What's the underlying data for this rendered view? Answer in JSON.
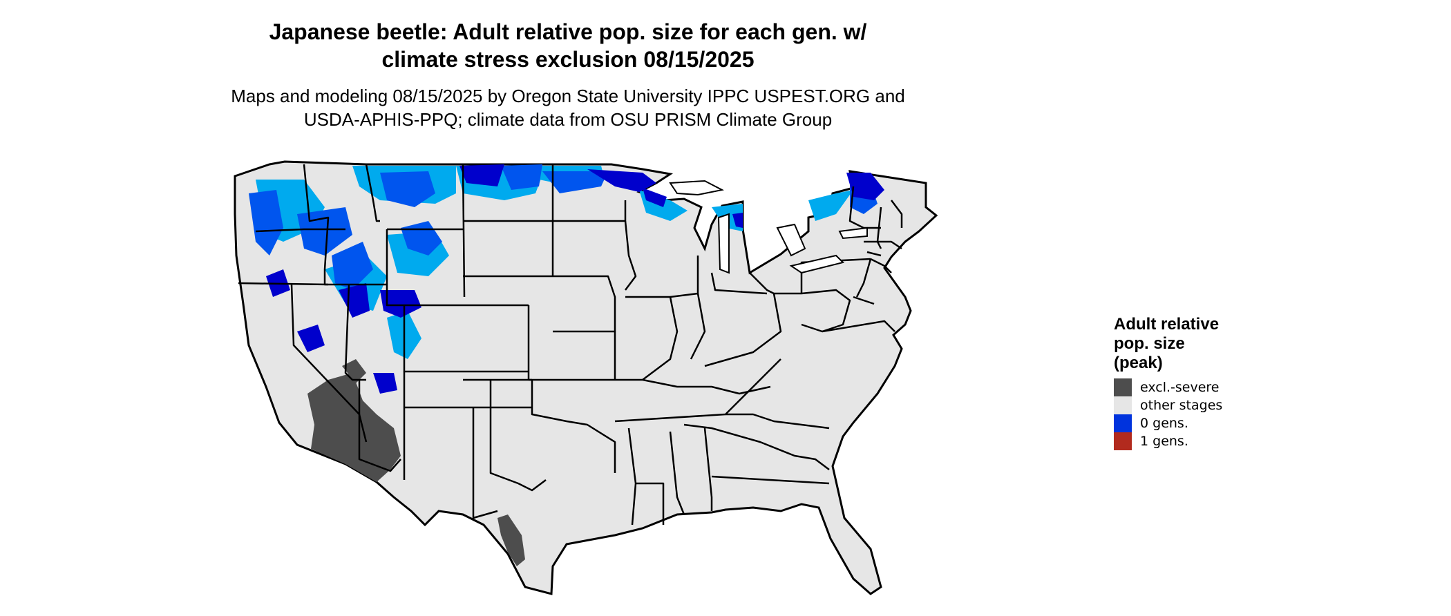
{
  "title": {
    "line1": "Japanese beetle: Adult relative pop. size for each gen. w/",
    "line2": "climate stress exclusion 08/15/2025"
  },
  "subtitle": {
    "line1": "Maps and modeling 08/15/2025 by Oregon State University IPPC USPEST.ORG and",
    "line2": "USDA-APHIS-PPQ; climate data from OSU PRISM Climate Group"
  },
  "legend": {
    "title_lines": [
      "Adult relative",
      "pop. size",
      "(peak)"
    ],
    "items": [
      {
        "label": "excl.-severe",
        "color": "#4d4d4d"
      },
      {
        "label": "other stages",
        "color": "#e6e6e6"
      },
      {
        "label": "0 gens.",
        "color": "#0033dd"
      },
      {
        "label": "1 gens.",
        "color": "#b22a1e"
      }
    ]
  },
  "colors": {
    "land": "#e6e6e6",
    "border": "#000000",
    "excluded": "#4d4d4d",
    "gen0_dark": "#0000cc",
    "gen0_mid": "#0055ee",
    "gen0_light": "#00aaee"
  }
}
